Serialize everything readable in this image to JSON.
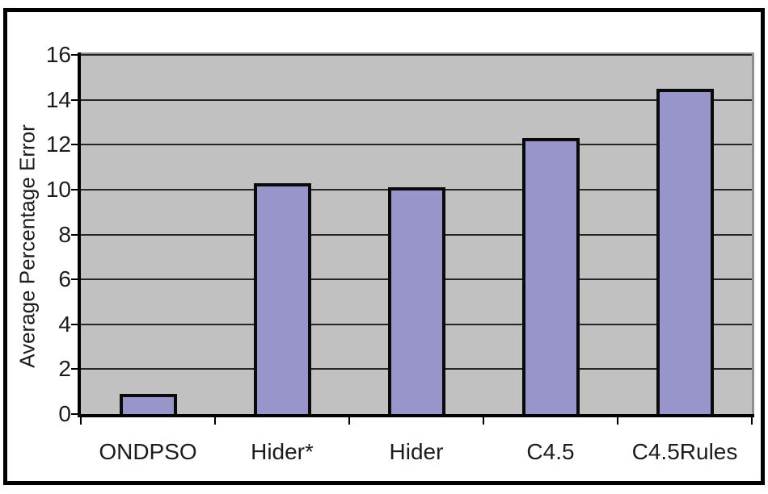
{
  "page": {
    "background": "#FFFFFF"
  },
  "frame": {
    "border_color": "#000000"
  },
  "chart_data": {
    "type": "bar",
    "categories": [
      "ONDPSO",
      "Hider*",
      "Hider",
      "C4.5",
      "C4.5Rules"
    ],
    "values": [
      0.9,
      10.3,
      10.1,
      12.3,
      14.5
    ],
    "title": "",
    "xlabel": "",
    "ylabel": "Average Percentage Error",
    "ylim": [
      0,
      16
    ],
    "yticks": [
      0,
      2,
      4,
      6,
      8,
      10,
      12,
      14,
      16
    ],
    "grid": true,
    "legend": false,
    "plot_bg": "#C1C1C1",
    "plot_border_color": "#8F8F8F",
    "grid_color": "#262626",
    "axis_color": "#000000",
    "bar_fill": "#9795CA",
    "bar_stroke": "#0A0A0A",
    "label_color": "#1C1C1C"
  }
}
